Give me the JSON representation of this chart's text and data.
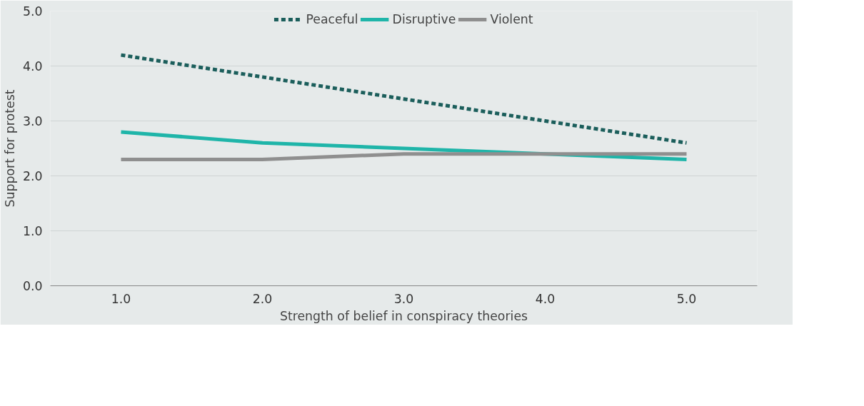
{
  "chart_data": {
    "type": "line",
    "xlabel": "Strength of belief in conspiracy theories",
    "ylabel": "Support for protest",
    "categories": [
      "1.0",
      "2.0",
      "3.0",
      "4.0",
      "5.0"
    ],
    "series": [
      {
        "name": "Peaceful",
        "color": "#1b5e5b",
        "line_style": "dashed",
        "values": [
          4.2,
          3.8,
          3.4,
          3.0,
          2.6
        ]
      },
      {
        "name": "Disruptive",
        "color": "#1fb5a9",
        "line_style": "solid",
        "values": [
          2.8,
          2.6,
          2.5,
          2.4,
          2.3
        ]
      },
      {
        "name": "Violent",
        "color": "#8f8f8f",
        "line_style": "solid",
        "values": [
          2.3,
          2.3,
          2.4,
          2.4,
          2.4
        ]
      }
    ],
    "ylim": [
      0,
      5
    ],
    "yticks": [
      {
        "value": 0,
        "label": "0.0"
      },
      {
        "value": 1,
        "label": "1.0"
      },
      {
        "value": 2,
        "label": "2.0"
      },
      {
        "value": 3,
        "label": "3.0"
      },
      {
        "value": 4,
        "label": "4.0"
      },
      {
        "value": 5,
        "label": "5.0"
      }
    ],
    "grid": "y",
    "legend": "top",
    "marker": "none"
  }
}
